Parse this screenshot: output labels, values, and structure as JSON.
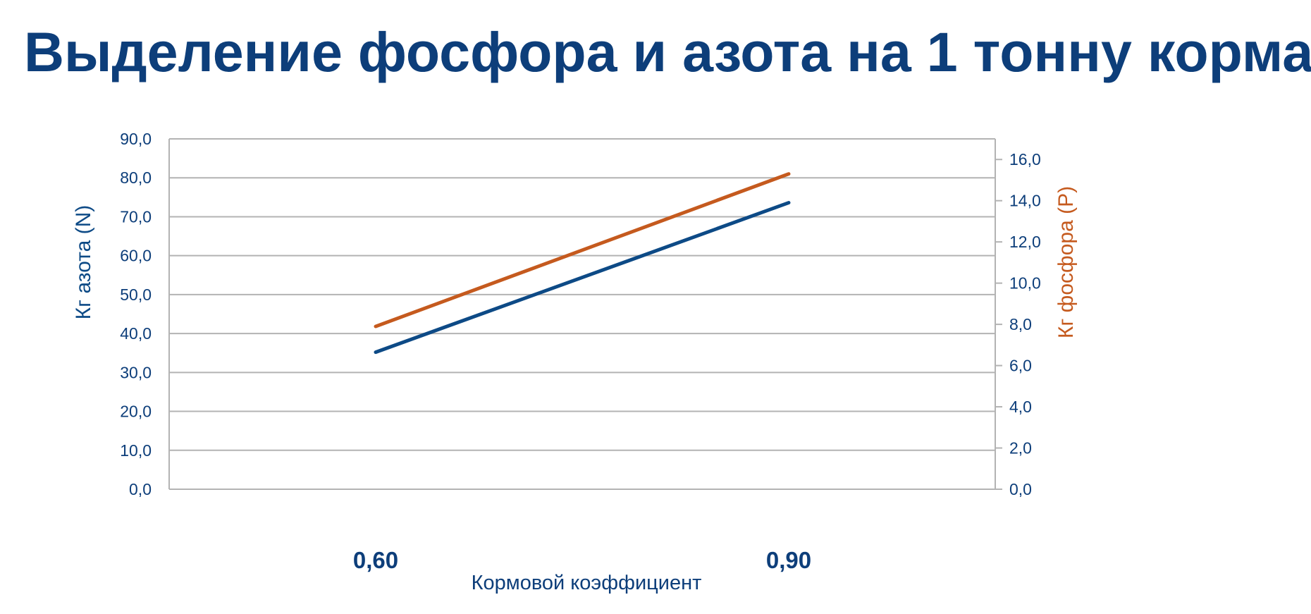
{
  "title": "Выделение фосфора и азота на 1 тонну корма:",
  "colors": {
    "nitrogen": "#0d4a86",
    "phosphorus": "#c55a1e",
    "text": "#0d3e7a",
    "grid": "#b3b3b3"
  },
  "chart_data": {
    "type": "line",
    "xlabel": "Кормовой коэффициент",
    "categories": [
      "0,60",
      "0,90"
    ],
    "y_left": {
      "label": "Кг азота (N)",
      "range": [
        0,
        90
      ],
      "ticks": [
        "0,0",
        "10,0",
        "20,0",
        "30,0",
        "40,0",
        "50,0",
        "60,0",
        "70,0",
        "80,0",
        "90,0"
      ]
    },
    "y_right": {
      "label": "Кг фосфора (P)",
      "range": [
        0,
        17
      ],
      "ticks": [
        "0,0",
        "2,0",
        "4,0",
        "6,0",
        "8,0",
        "10,0",
        "12,0",
        "14,0",
        "16,0"
      ]
    },
    "series": [
      {
        "axis": "left",
        "color": "#0d4a86",
        "values": [
          35.2,
          73.6
        ]
      },
      {
        "axis": "right",
        "color": "#c55a1e",
        "values": [
          7.9,
          15.3
        ]
      }
    ],
    "grid": true,
    "legend": "none"
  }
}
